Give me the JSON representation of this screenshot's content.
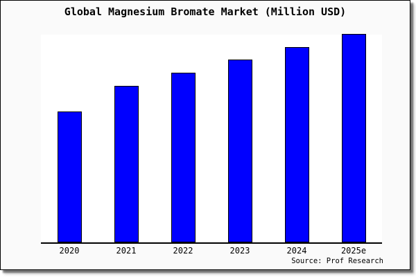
{
  "window": {
    "background": "#ffffff",
    "card_background": "#fafafa",
    "border_color": "#000000"
  },
  "chart_data": {
    "type": "bar",
    "title": "Global Magnesium Bromate Market (Million USD)",
    "categories": [
      "2020",
      "2021",
      "2022",
      "2023",
      "2024",
      "2025e"
    ],
    "values": [
      189,
      226,
      245,
      264,
      282,
      301
    ],
    "value_scale_note": "no y-axis scale or gridlines shown; values are relative bar heights",
    "ylim": [
      0,
      302
    ],
    "xlabel": "",
    "ylabel": "",
    "grid": false,
    "legend": "none",
    "y_axis_labels_visible": false,
    "bar_color": "#0000ff",
    "bar_border_color": "#000000",
    "axis_color": "#000000",
    "plot_background": "#ffffff",
    "source_note": "Source: Prof Research"
  }
}
